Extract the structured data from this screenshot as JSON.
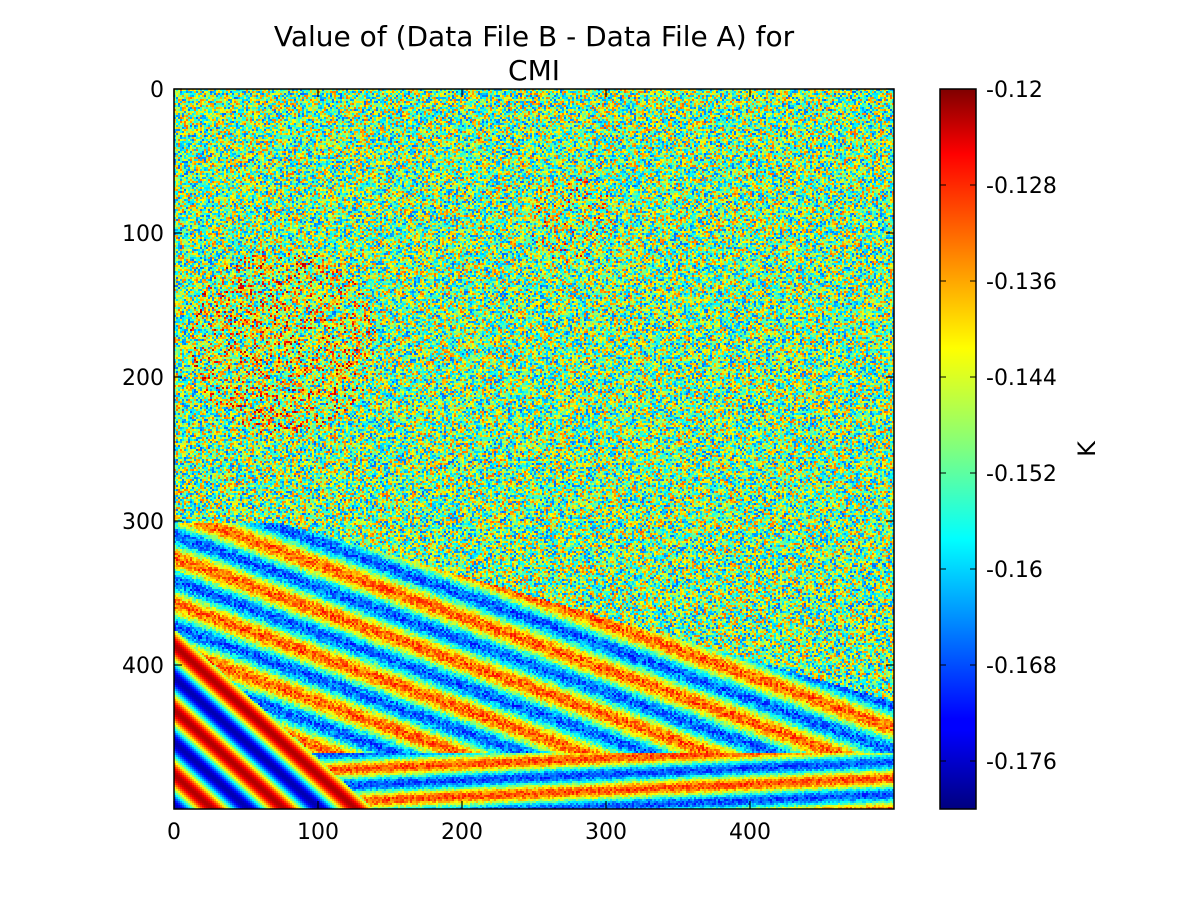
{
  "figure": {
    "title_line1": "Value of (Data File B - Data File A) for",
    "title_line2": "CMI"
  },
  "chart_data": {
    "type": "heatmap",
    "title": "Value of (Data File B - Data File A) for CMI",
    "xlabel": "",
    "ylabel": "",
    "xlim": [
      0,
      500
    ],
    "ylim": [
      500,
      0
    ],
    "y_inverted": true,
    "xticks": [
      0,
      100,
      200,
      300,
      400
    ],
    "yticks": [
      0,
      100,
      200,
      300,
      400
    ],
    "xtick_labels": [
      "0",
      "100",
      "200",
      "300",
      "400"
    ],
    "ytick_labels": [
      "0",
      "100",
      "200",
      "300",
      "400"
    ],
    "colormap": "jet",
    "colorbar": {
      "label": "K",
      "range": [
        -0.18,
        -0.12
      ],
      "ticks": [
        -0.12,
        -0.128,
        -0.136,
        -0.144,
        -0.152,
        -0.16,
        -0.168,
        -0.176
      ],
      "tick_labels": [
        "-0.12",
        "-0.128",
        "-0.136",
        "-0.144",
        "-0.152",
        "-0.16",
        "-0.168",
        "-0.176"
      ]
    },
    "grid": false,
    "legend": "none",
    "description_of_field": "noisy difference field, mostly around -0.15 K with orange patches in the upper-left; banded blue/cyan/yellow/orange contour-like stripes in the lower-left and along the bottom"
  }
}
